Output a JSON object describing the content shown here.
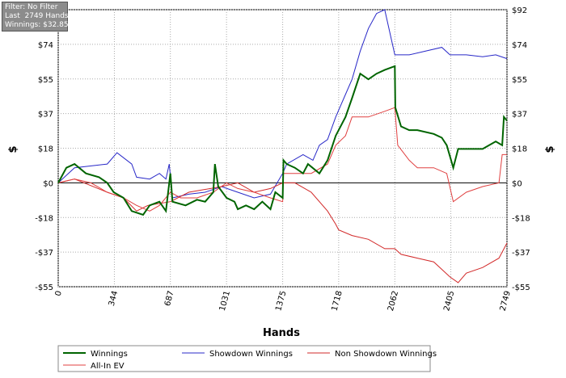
{
  "info_box": {
    "lines": [
      "Filter: No Filter",
      "Last  2749 Hands",
      "Winnings: $32.85"
    ]
  },
  "chart_data": {
    "type": "line",
    "x_label": "Hands",
    "y_label": "$",
    "grid": true,
    "xlim": [
      0,
      2749
    ],
    "xticks": [
      0,
      344,
      687,
      1031,
      1375,
      1718,
      2062,
      2405,
      2749
    ],
    "ylim": [
      -55.2,
      92
    ],
    "yticks": [
      {
        "value": -55.2,
        "label": "-$55"
      },
      {
        "value": -36.8,
        "label": "-$37"
      },
      {
        "value": -18.4,
        "label": "-$18"
      },
      {
        "value": 0,
        "label": "$0"
      },
      {
        "value": 18.4,
        "label": "$18"
      },
      {
        "value": 36.8,
        "label": "$37"
      },
      {
        "value": 55.2,
        "label": "$55"
      },
      {
        "value": 73.6,
        "label": "$74"
      },
      {
        "value": 92,
        "label": "$92"
      }
    ],
    "series": [
      {
        "name": "Winnings",
        "color": "#006400",
        "x": [
          0,
          50,
          100,
          170,
          250,
          300,
          340,
          400,
          450,
          520,
          560,
          620,
          660,
          687,
          700,
          780,
          850,
          900,
          950,
          960,
          980,
          1031,
          1080,
          1100,
          1150,
          1200,
          1250,
          1300,
          1330,
          1375,
          1380,
          1400,
          1450,
          1500,
          1530,
          1600,
          1650,
          1700,
          1760,
          1800,
          1850,
          1900,
          1950,
          2000,
          2062,
          2065,
          2100,
          2150,
          2200,
          2300,
          2350,
          2380,
          2420,
          2450,
          2500,
          2600,
          2680,
          2720,
          2730,
          2749
        ],
        "values": [
          0,
          8,
          10,
          5,
          3,
          0,
          -5,
          -8,
          -15,
          -17,
          -12,
          -10,
          -15,
          5,
          -10,
          -12,
          -9,
          -10,
          -5,
          10,
          -2,
          -8,
          -10,
          -14,
          -12,
          -14,
          -10,
          -14,
          -5,
          -8,
          12,
          10,
          8,
          5,
          10,
          5,
          12,
          25,
          35,
          45,
          58,
          55,
          58,
          60,
          62,
          40,
          30,
          28,
          28,
          26,
          24,
          20,
          8,
          18,
          18,
          18,
          22,
          20,
          35,
          33
        ]
      },
      {
        "name": "Showdown Winnings",
        "color": "#2828c8",
        "x": [
          0,
          100,
          300,
          360,
          450,
          480,
          560,
          620,
          660,
          680,
          700,
          800,
          900,
          1000,
          1100,
          1200,
          1300,
          1375,
          1400,
          1500,
          1560,
          1600,
          1650,
          1700,
          1750,
          1800,
          1850,
          1900,
          1950,
          2000,
          2062,
          2150,
          2250,
          2350,
          2400,
          2500,
          2600,
          2680,
          2749
        ],
        "values": [
          0,
          8,
          10,
          16,
          10,
          3,
          2,
          5,
          2,
          10,
          -8,
          -6,
          -5,
          -2,
          -5,
          -8,
          -6,
          5,
          10,
          15,
          12,
          20,
          23,
          35,
          45,
          55,
          70,
          82,
          90,
          92,
          68,
          68,
          70,
          72,
          68,
          68,
          67,
          68,
          66
        ]
      },
      {
        "name": "Non Showdown Winnings",
        "color": "#d22828",
        "x": [
          0,
          100,
          300,
          400,
          480,
          550,
          687,
          800,
          1000,
          1100,
          1200,
          1300,
          1375,
          1450,
          1550,
          1650,
          1700,
          1718,
          1800,
          1900,
          2000,
          2062,
          2100,
          2200,
          2300,
          2400,
          2450,
          2500,
          2600,
          2700,
          2749
        ],
        "values": [
          0,
          2,
          -5,
          -8,
          -15,
          -12,
          -10,
          -5,
          -2,
          0,
          -5,
          -3,
          0,
          0,
          -5,
          -15,
          -22,
          -25,
          -28,
          -30,
          -35,
          -35,
          -38,
          -40,
          -42,
          -50,
          -53,
          -48,
          -45,
          -40,
          -32
        ]
      },
      {
        "name": "All-In EV",
        "color": "#e04040",
        "x": [
          0,
          100,
          200,
          300,
          400,
          480,
          560,
          620,
          687,
          750,
          850,
          950,
          1031,
          1100,
          1200,
          1300,
          1375,
          1380,
          1450,
          1550,
          1650,
          1700,
          1760,
          1800,
          1900,
          2000,
          2062,
          2080,
          2150,
          2200,
          2300,
          2380,
          2420,
          2500,
          2600,
          2700,
          2720,
          2749
        ],
        "values": [
          0,
          2,
          0,
          -5,
          -8,
          -12,
          -15,
          -12,
          -5,
          -8,
          -8,
          -5,
          0,
          -3,
          -5,
          -8,
          -10,
          5,
          5,
          5,
          10,
          20,
          25,
          35,
          35,
          38,
          40,
          20,
          12,
          8,
          8,
          5,
          -10,
          -5,
          -2,
          0,
          15,
          15
        ]
      }
    ]
  }
}
